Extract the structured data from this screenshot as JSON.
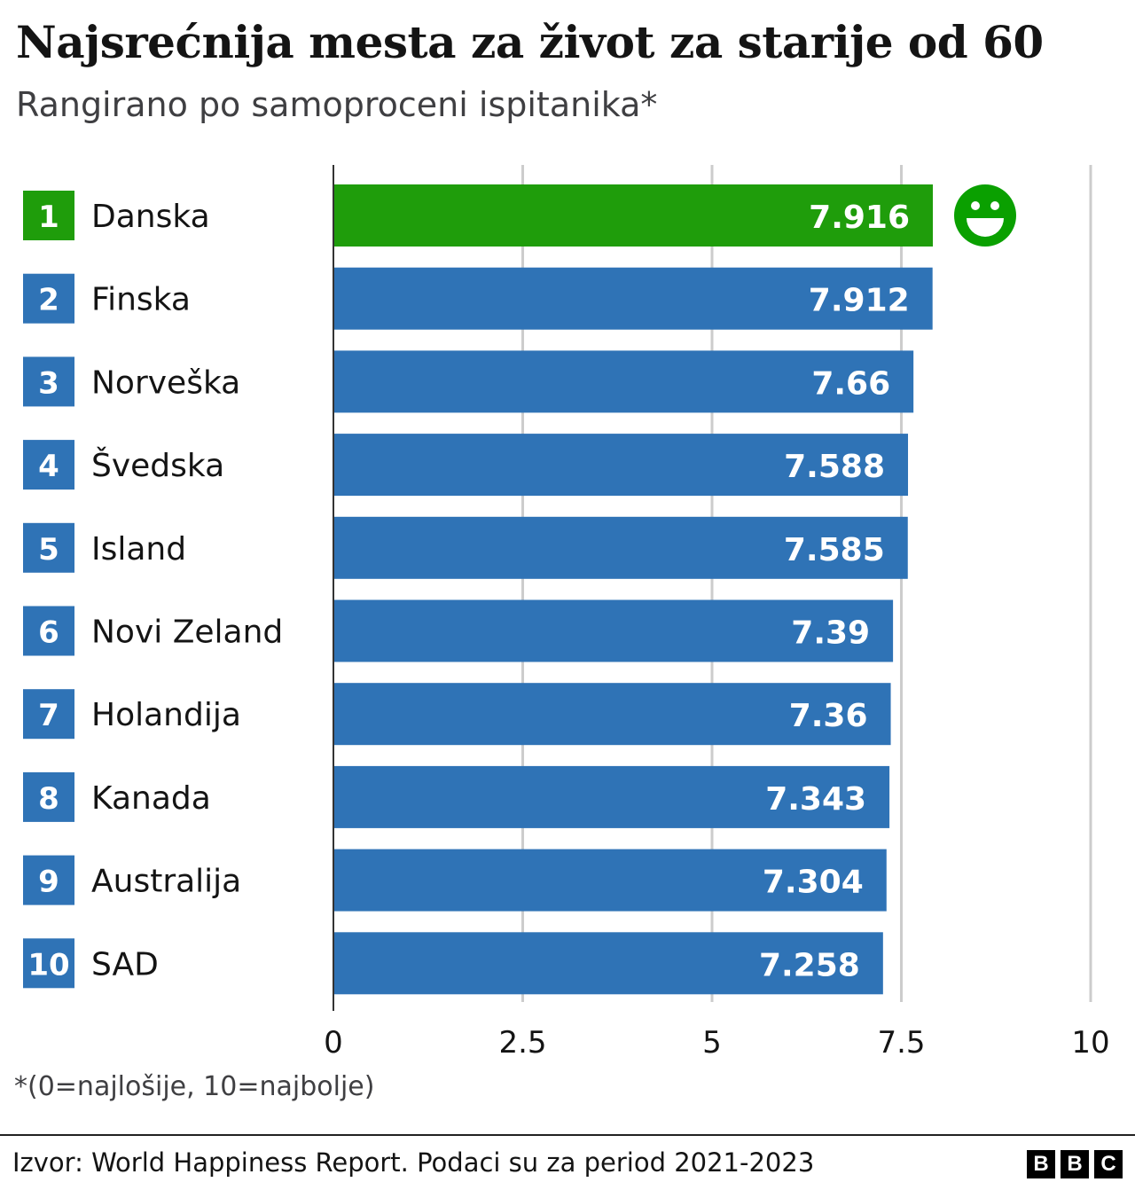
{
  "chart_data": {
    "type": "bar",
    "orientation": "horizontal",
    "title": "Najsrećnija mesta za život za starije od 60",
    "subtitle": "Rangirano po samoproceni ispitanika*",
    "ranks": [
      "1",
      "2",
      "3",
      "4",
      "5",
      "6",
      "7",
      "8",
      "9",
      "10"
    ],
    "categories": [
      "Danska",
      "Finska",
      "Norveška",
      "Švedska",
      "Island",
      "Novi Zeland",
      "Holandija",
      "Kanada",
      "Australija",
      "SAD"
    ],
    "values": [
      7.916,
      7.912,
      7.66,
      7.588,
      7.585,
      7.39,
      7.36,
      7.343,
      7.304,
      7.258
    ],
    "value_labels": [
      "7.916",
      "7.912",
      "7.66",
      "7.588",
      "7.585",
      "7.39",
      "7.36",
      "7.343",
      "7.304",
      "7.258"
    ],
    "xlim": [
      0,
      10
    ],
    "xticks": [
      0,
      2.5,
      5,
      7.5,
      10
    ],
    "xtick_labels": [
      "0",
      "2.5",
      "5",
      "7.5",
      "10"
    ],
    "grid": true,
    "colors": {
      "highlight": "#1f9d0b",
      "bar": "#2f73b6",
      "smiley": "#0aa000",
      "grid": "#cccccc"
    },
    "highlight_icon": "smiley-face-icon",
    "note": "*(0=najlošije, 10=najbolje)"
  },
  "footer": {
    "source": "Izvor: World Happiness Report. Podaci su za period 2021-2023",
    "logo_letters": [
      "B",
      "B",
      "C"
    ]
  }
}
